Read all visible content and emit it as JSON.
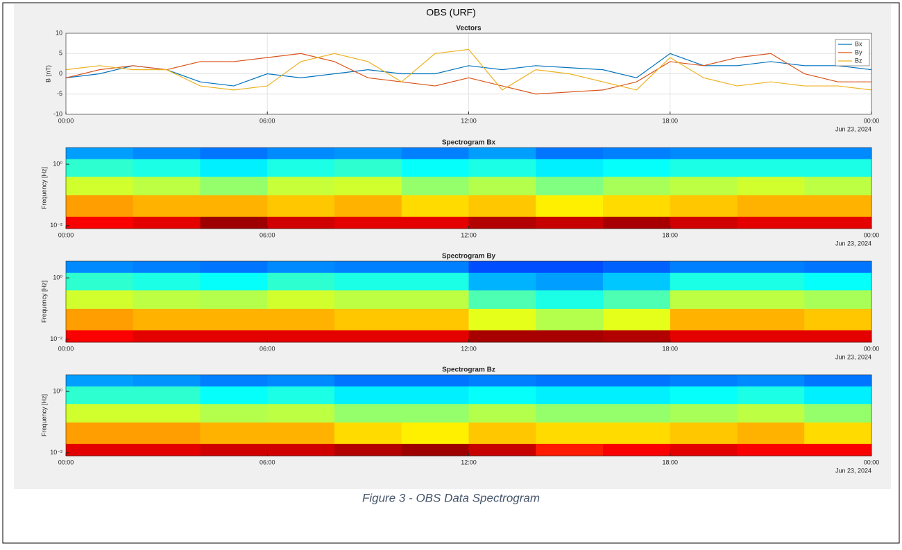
{
  "figure_title": "OBS (URF)",
  "caption": "Figure 3 - OBS Data Spectrogram",
  "chart_data": [
    {
      "type": "line",
      "title": "Vectors",
      "ylabel": "B (nT)",
      "x": [
        0,
        1,
        2,
        3,
        4,
        5,
        6,
        7,
        8,
        9,
        10,
        11,
        12,
        13,
        14,
        15,
        16,
        17,
        18,
        19,
        20,
        21,
        22,
        23,
        24
      ],
      "xlim": [
        0,
        24
      ],
      "xticks": [
        {
          "value": 0,
          "label": "00:00"
        },
        {
          "value": 6,
          "label": "06:00"
        },
        {
          "value": 12,
          "label": "12:00"
        },
        {
          "value": 18,
          "label": "18:00"
        },
        {
          "value": 24,
          "label": "00:00"
        }
      ],
      "x_date_label": "Jun 23, 2024",
      "ylim": [
        -10,
        10
      ],
      "yticks": [
        -10,
        -5,
        0,
        5,
        10
      ],
      "grid": true,
      "legend": "top-right",
      "series": [
        {
          "name": "Bx",
          "color": "#0072bd",
          "values": [
            -1,
            0,
            2,
            1,
            -2,
            -3,
            0,
            -1,
            0,
            1,
            0,
            0,
            2,
            1,
            2,
            1.5,
            1,
            -1,
            5,
            2,
            2,
            3,
            2,
            2,
            1
          ]
        },
        {
          "name": "By",
          "color": "#d95319",
          "values": [
            -1,
            1,
            2,
            1,
            3,
            3,
            4,
            5,
            3,
            -1,
            -2,
            -3,
            -1,
            -3,
            -5,
            -4.5,
            -4,
            -2,
            3,
            2,
            4,
            5,
            0,
            -2,
            -2
          ]
        },
        {
          "name": "Bz",
          "color": "#edb120",
          "values": [
            1,
            2,
            1,
            1,
            -3,
            -4,
            -3,
            3,
            5,
            3,
            -2,
            5,
            6,
            -4,
            1,
            0,
            -2,
            -4,
            4,
            -1,
            -3,
            -2,
            -3,
            -3,
            -4
          ]
        }
      ]
    },
    {
      "type": "heatmap",
      "title": "Spectrogram Bx",
      "ylabel": "Frequency [Hz]",
      "colormap": "jet",
      "yscale": "log",
      "xlim": [
        0,
        24
      ],
      "xticks": [
        {
          "value": 0,
          "label": "00:00"
        },
        {
          "value": 6,
          "label": "06:00"
        },
        {
          "value": 12,
          "label": "12:00"
        },
        {
          "value": 18,
          "label": "18:00"
        },
        {
          "value": 24,
          "label": "00:00"
        }
      ],
      "x_date_label": "Jun 23, 2024",
      "ylim": [
        0.008,
        3.5
      ],
      "yticks": [
        {
          "value": 0.01,
          "label": "10⁻²"
        },
        {
          "value": 1,
          "label": "10⁰"
        }
      ],
      "time_bins": [
        0,
        2,
        4,
        6,
        8,
        10,
        12,
        14,
        16,
        18,
        20,
        22,
        24
      ],
      "frequency_bins": [
        0.008,
        0.02,
        0.1,
        0.4,
        1.5,
        3.5
      ],
      "z": [
        [
          0.88,
          0.9,
          0.97,
          0.92,
          0.9,
          0.9,
          0.95,
          0.93,
          0.96,
          0.92,
          0.9,
          0.9
        ],
        [
          0.72,
          0.7,
          0.7,
          0.68,
          0.7,
          0.66,
          0.68,
          0.64,
          0.66,
          0.68,
          0.7,
          0.7
        ],
        [
          0.58,
          0.56,
          0.52,
          0.57,
          0.58,
          0.52,
          0.55,
          0.5,
          0.54,
          0.56,
          0.58,
          0.56
        ],
        [
          0.42,
          0.4,
          0.36,
          0.4,
          0.42,
          0.38,
          0.4,
          0.36,
          0.38,
          0.4,
          0.4,
          0.4
        ],
        [
          0.28,
          0.26,
          0.24,
          0.26,
          0.27,
          0.25,
          0.28,
          0.24,
          0.25,
          0.26,
          0.26,
          0.26
        ]
      ]
    },
    {
      "type": "heatmap",
      "title": "Spectrogram By",
      "ylabel": "Frequency [Hz]",
      "colormap": "jet",
      "yscale": "log",
      "xlim": [
        0,
        24
      ],
      "xticks": [
        {
          "value": 0,
          "label": "00:00"
        },
        {
          "value": 6,
          "label": "06:00"
        },
        {
          "value": 12,
          "label": "12:00"
        },
        {
          "value": 18,
          "label": "18:00"
        },
        {
          "value": 24,
          "label": "00:00"
        }
      ],
      "x_date_label": "Jun 23, 2024",
      "ylim": [
        0.008,
        3.5
      ],
      "yticks": [
        {
          "value": 0.01,
          "label": "10⁻²"
        },
        {
          "value": 1,
          "label": "10⁰"
        }
      ],
      "time_bins": [
        0,
        2,
        4,
        6,
        8,
        10,
        12,
        14,
        16,
        18,
        20,
        22,
        24
      ],
      "frequency_bins": [
        0.008,
        0.02,
        0.1,
        0.4,
        1.5,
        3.5
      ],
      "z": [
        [
          0.88,
          0.9,
          0.9,
          0.9,
          0.9,
          0.9,
          0.96,
          0.96,
          0.95,
          0.9,
          0.9,
          0.9
        ],
        [
          0.72,
          0.7,
          0.7,
          0.7,
          0.68,
          0.68,
          0.6,
          0.55,
          0.6,
          0.7,
          0.7,
          0.68
        ],
        [
          0.58,
          0.56,
          0.55,
          0.58,
          0.56,
          0.56,
          0.45,
          0.4,
          0.45,
          0.56,
          0.56,
          0.54
        ],
        [
          0.42,
          0.4,
          0.38,
          0.42,
          0.4,
          0.4,
          0.3,
          0.28,
          0.32,
          0.4,
          0.4,
          0.38
        ],
        [
          0.26,
          0.25,
          0.24,
          0.26,
          0.25,
          0.25,
          0.2,
          0.2,
          0.22,
          0.25,
          0.25,
          0.24
        ]
      ]
    },
    {
      "type": "heatmap",
      "title": "Spectrogram Bz",
      "ylabel": "Frequency [Hz]",
      "colormap": "jet",
      "yscale": "log",
      "xlim": [
        0,
        24
      ],
      "xticks": [
        {
          "value": 0,
          "label": "00:00"
        },
        {
          "value": 6,
          "label": "06:00"
        },
        {
          "value": 12,
          "label": "12:00"
        },
        {
          "value": 18,
          "label": "18:00"
        },
        {
          "value": 24,
          "label": "00:00"
        }
      ],
      "x_date_label": "Jun 23, 2024",
      "ylim": [
        0.008,
        3.5
      ],
      "yticks": [
        {
          "value": 0.01,
          "label": "10⁻²"
        },
        {
          "value": 1,
          "label": "10⁰"
        }
      ],
      "time_bins": [
        0,
        2,
        4,
        6,
        8,
        10,
        12,
        14,
        16,
        18,
        20,
        22,
        24
      ],
      "frequency_bins": [
        0.008,
        0.02,
        0.1,
        0.4,
        1.5,
        3.5
      ],
      "z": [
        [
          0.9,
          0.9,
          0.92,
          0.92,
          0.95,
          0.97,
          0.93,
          0.85,
          0.88,
          0.9,
          0.88,
          0.88
        ],
        [
          0.72,
          0.72,
          0.7,
          0.7,
          0.66,
          0.64,
          0.68,
          0.66,
          0.66,
          0.68,
          0.7,
          0.66
        ],
        [
          0.58,
          0.58,
          0.55,
          0.56,
          0.52,
          0.52,
          0.55,
          0.52,
          0.52,
          0.54,
          0.56,
          0.52
        ],
        [
          0.42,
          0.42,
          0.38,
          0.4,
          0.36,
          0.36,
          0.38,
          0.36,
          0.36,
          0.38,
          0.4,
          0.36
        ],
        [
          0.28,
          0.27,
          0.25,
          0.26,
          0.24,
          0.24,
          0.25,
          0.24,
          0.24,
          0.25,
          0.26,
          0.24
        ]
      ]
    }
  ]
}
